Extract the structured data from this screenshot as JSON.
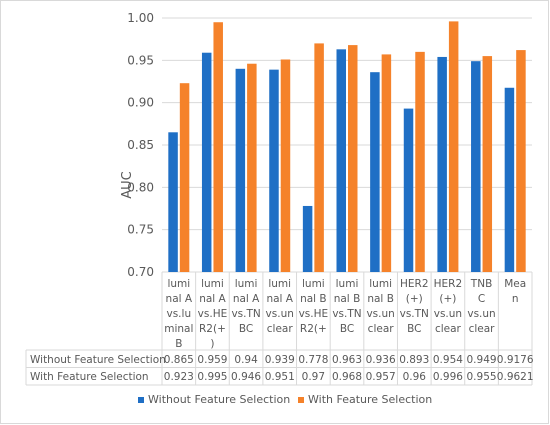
{
  "chart_data": {
    "type": "bar",
    "ylabel": "AUC",
    "ylim": [
      0.7,
      1.0
    ],
    "yticks": [
      "0.70",
      "0.75",
      "0.80",
      "0.85",
      "0.90",
      "0.95",
      "1.00"
    ],
    "grid": true,
    "legend_position": "bottom",
    "categories": [
      [
        "lumi",
        "nal A",
        "vs.lu",
        "minal",
        "B"
      ],
      [
        "lumi",
        "nal A",
        "vs.HE",
        "R2(+",
        ")"
      ],
      [
        "lumi",
        "nal A",
        "vs.TN",
        "BC"
      ],
      [
        "lumi",
        "nal A",
        "vs.un",
        "clear"
      ],
      [
        "lumi",
        "nal B",
        "vs.HE",
        "R2(+"
      ],
      [
        "lumi",
        "nal B",
        "vs.TN",
        "BC"
      ],
      [
        "lumi",
        "nal B",
        "vs.un",
        "clear"
      ],
      [
        "HER2",
        "(+)",
        "vs.TN",
        "BC"
      ],
      [
        "HER2",
        "(+)",
        "vs.un",
        "clear"
      ],
      [
        "TNB",
        "C",
        "vs.un",
        "clear"
      ],
      [
        "Mea",
        "n"
      ]
    ],
    "series": [
      {
        "name": "Without Feature Selection",
        "color": "#1f6fc5",
        "values": [
          0.865,
          0.959,
          0.94,
          0.939,
          0.778,
          0.963,
          0.936,
          0.893,
          0.954,
          0.949,
          0.9176
        ],
        "labels": [
          "0.865",
          "0.959",
          "0.94",
          "0.939",
          "0.778",
          "0.963",
          "0.936",
          "0.893",
          "0.954",
          "0.949",
          "0.9176"
        ]
      },
      {
        "name": "With Feature Selection",
        "color": "#f5822a",
        "values": [
          0.923,
          0.995,
          0.946,
          0.951,
          0.97,
          0.968,
          0.957,
          0.96,
          0.996,
          0.955,
          0.9621
        ],
        "labels": [
          "0.923",
          "0.995",
          "0.946",
          "0.951",
          "0.97",
          "0.968",
          "0.957",
          "0.96",
          "0.996",
          "0.955",
          "0.9621"
        ]
      }
    ]
  }
}
